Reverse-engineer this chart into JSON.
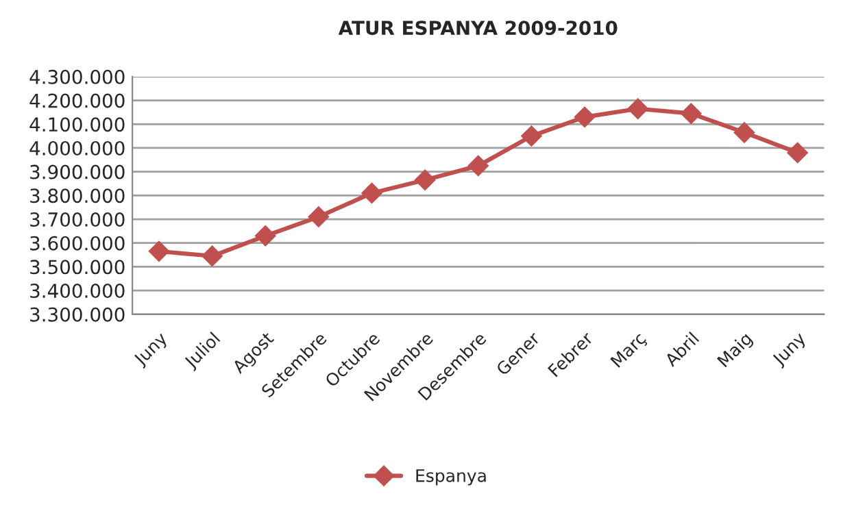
{
  "chart_data": {
    "type": "line",
    "title": "ATUR ESPANYA 2009-2010",
    "categories": [
      "Juny",
      "Juliol",
      "Agost",
      "Setembre",
      "Octubre",
      "Novembre",
      "Desembre",
      "Gener",
      "Febrer",
      "Març",
      "Abril",
      "Maig",
      "Juny"
    ],
    "series": [
      {
        "name": "Espanya",
        "color": "#c0504d",
        "values": [
          3565000,
          3545000,
          3630000,
          3710000,
          3810000,
          3865000,
          3925000,
          4050000,
          4130000,
          4165000,
          4145000,
          4065000,
          3980000
        ]
      }
    ],
    "ylim": [
      3300000,
      4300000
    ],
    "yticks": [
      {
        "value": 3300000,
        "label": "3.300.000"
      },
      {
        "value": 3400000,
        "label": "3.400.000"
      },
      {
        "value": 3500000,
        "label": "3.500.000"
      },
      {
        "value": 3600000,
        "label": "3.600.000"
      },
      {
        "value": 3700000,
        "label": "3.700.000"
      },
      {
        "value": 3800000,
        "label": "3.800.000"
      },
      {
        "value": 3900000,
        "label": "3.900.000"
      },
      {
        "value": 4000000,
        "label": "4.000.000"
      },
      {
        "value": 4100000,
        "label": "4.100.000"
      },
      {
        "value": 4200000,
        "label": "4.200.000"
      },
      {
        "value": 4300000,
        "label": "4.300.000"
      }
    ],
    "grid": "y",
    "legend": "bottom",
    "marker": "diamond",
    "line_style": "solid"
  }
}
